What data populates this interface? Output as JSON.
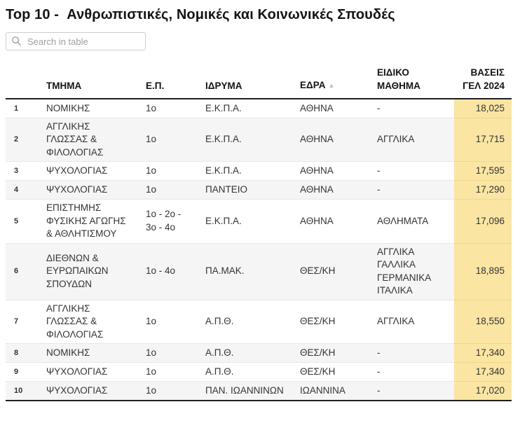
{
  "title": "Top 10 -  Ανθρωπιστικές, Νομικές και Κοινωνικές Σπουδές",
  "search": {
    "placeholder": "Search in table"
  },
  "colors": {
    "highlight_column": "#FAE5A3",
    "row_alt": "#F5F5F5",
    "header_border": "#1F1F1F",
    "separator": "#E8E8E8"
  },
  "table": {
    "sort_icon": "▲",
    "columns": [
      {
        "key": "rank",
        "label": ""
      },
      {
        "key": "tmima",
        "label": "ΤΜΗΜΑ"
      },
      {
        "key": "ep",
        "label": "Ε.Π."
      },
      {
        "key": "idryma",
        "label": "ΙΔΡΥΜΑ"
      },
      {
        "key": "edra",
        "label": "ΕΔΡΑ",
        "sorted": "asc"
      },
      {
        "key": "eidiko",
        "label": "ΕΙΔΙΚΟ ΜΑΘΗΜΑ"
      },
      {
        "key": "vaseis",
        "label": "ΒΑΣΕΙΣ ΓΕΛ 2024"
      }
    ],
    "rows": [
      {
        "rank": "1",
        "tmima": "ΝΟΜΙΚΗΣ",
        "ep": "1ο",
        "idryma": "Ε.Κ.Π.Α.",
        "edra": "ΑΘΗΝΑ",
        "eidiko": "-",
        "vaseis": "18,025"
      },
      {
        "rank": "2",
        "tmima": "ΑΓΓΛΙΚΗΣ ΓΛΩΣΣΑΣ & ΦΙΛΟΛΟΓΙΑΣ",
        "ep": "1ο",
        "idryma": "Ε.Κ.Π.Α.",
        "edra": "ΑΘΗΝΑ",
        "eidiko": "ΑΓΓΛΙΚΑ",
        "vaseis": "17,715"
      },
      {
        "rank": "3",
        "tmima": "ΨΥΧΟΛΟΓΙΑΣ",
        "ep": "1ο",
        "idryma": "Ε.Κ.Π.Α.",
        "edra": "ΑΘΗΝΑ",
        "eidiko": "-",
        "vaseis": "17,595"
      },
      {
        "rank": "4",
        "tmima": "ΨΥΧΟΛΟΓΙΑΣ",
        "ep": "1ο",
        "idryma": "ΠΑΝΤΕΙΟ",
        "edra": "ΑΘΗΝΑ",
        "eidiko": "-",
        "vaseis": "17,290"
      },
      {
        "rank": "5",
        "tmima": "ΕΠΙΣΤΗΜΗΣ ΦΥΣΙΚΗΣ ΑΓΩΓΗΣ & ΑΘΛΗΤΙΣΜΟΥ",
        "ep": "1ο - 2ο - 3ο - 4ο",
        "idryma": "Ε.Κ.Π.Α.",
        "edra": "ΑΘΗΝΑ",
        "eidiko": "ΑΘΛΗΜΑΤΑ",
        "vaseis": "17,096"
      },
      {
        "rank": "6",
        "tmima": "ΔΙΕΘΝΩΝ & ΕΥΡΩΠΑΙΚΩΝ ΣΠΟΥΔΩΝ",
        "ep": "1ο - 4ο",
        "idryma": "ΠΑ.ΜΑΚ.",
        "edra": "ΘΕΣ/ΚΗ",
        "eidiko": "ΑΓΓΛΙΚΑ ΓΑΛΛΙΚΑ ΓΕΡΜΑΝΙΚΑ ΙΤΑΛΙΚΑ",
        "vaseis": "18,895"
      },
      {
        "rank": "7",
        "tmima": "ΑΓΓΛΙΚΗΣ ΓΛΩΣΣΑΣ & ΦΙΛΟΛΟΓΙΑΣ",
        "ep": "1ο",
        "idryma": "Α.Π.Θ.",
        "edra": "ΘΕΣ/ΚΗ",
        "eidiko": "ΑΓΓΛΙΚΑ",
        "vaseis": "18,550"
      },
      {
        "rank": "8",
        "tmima": "ΝΟΜΙΚΗΣ",
        "ep": "1ο",
        "idryma": "Α.Π.Θ.",
        "edra": "ΘΕΣ/ΚΗ",
        "eidiko": "-",
        "vaseis": "17,340"
      },
      {
        "rank": "9",
        "tmima": "ΨΥΧΟΛΟΓΙΑΣ",
        "ep": "1ο",
        "idryma": "Α.Π.Θ.",
        "edra": "ΘΕΣ/ΚΗ",
        "eidiko": "-",
        "vaseis": "17,340"
      },
      {
        "rank": "10",
        "tmima": "ΨΥΧΟΛΟΓΙΑΣ",
        "ep": "1ο",
        "idryma": "ΠΑΝ. ΙΩΑΝΝΙΝΩΝ",
        "edra": "ΙΩΑΝΝΙΝΑ",
        "eidiko": "-",
        "vaseis": "17,020"
      }
    ]
  }
}
